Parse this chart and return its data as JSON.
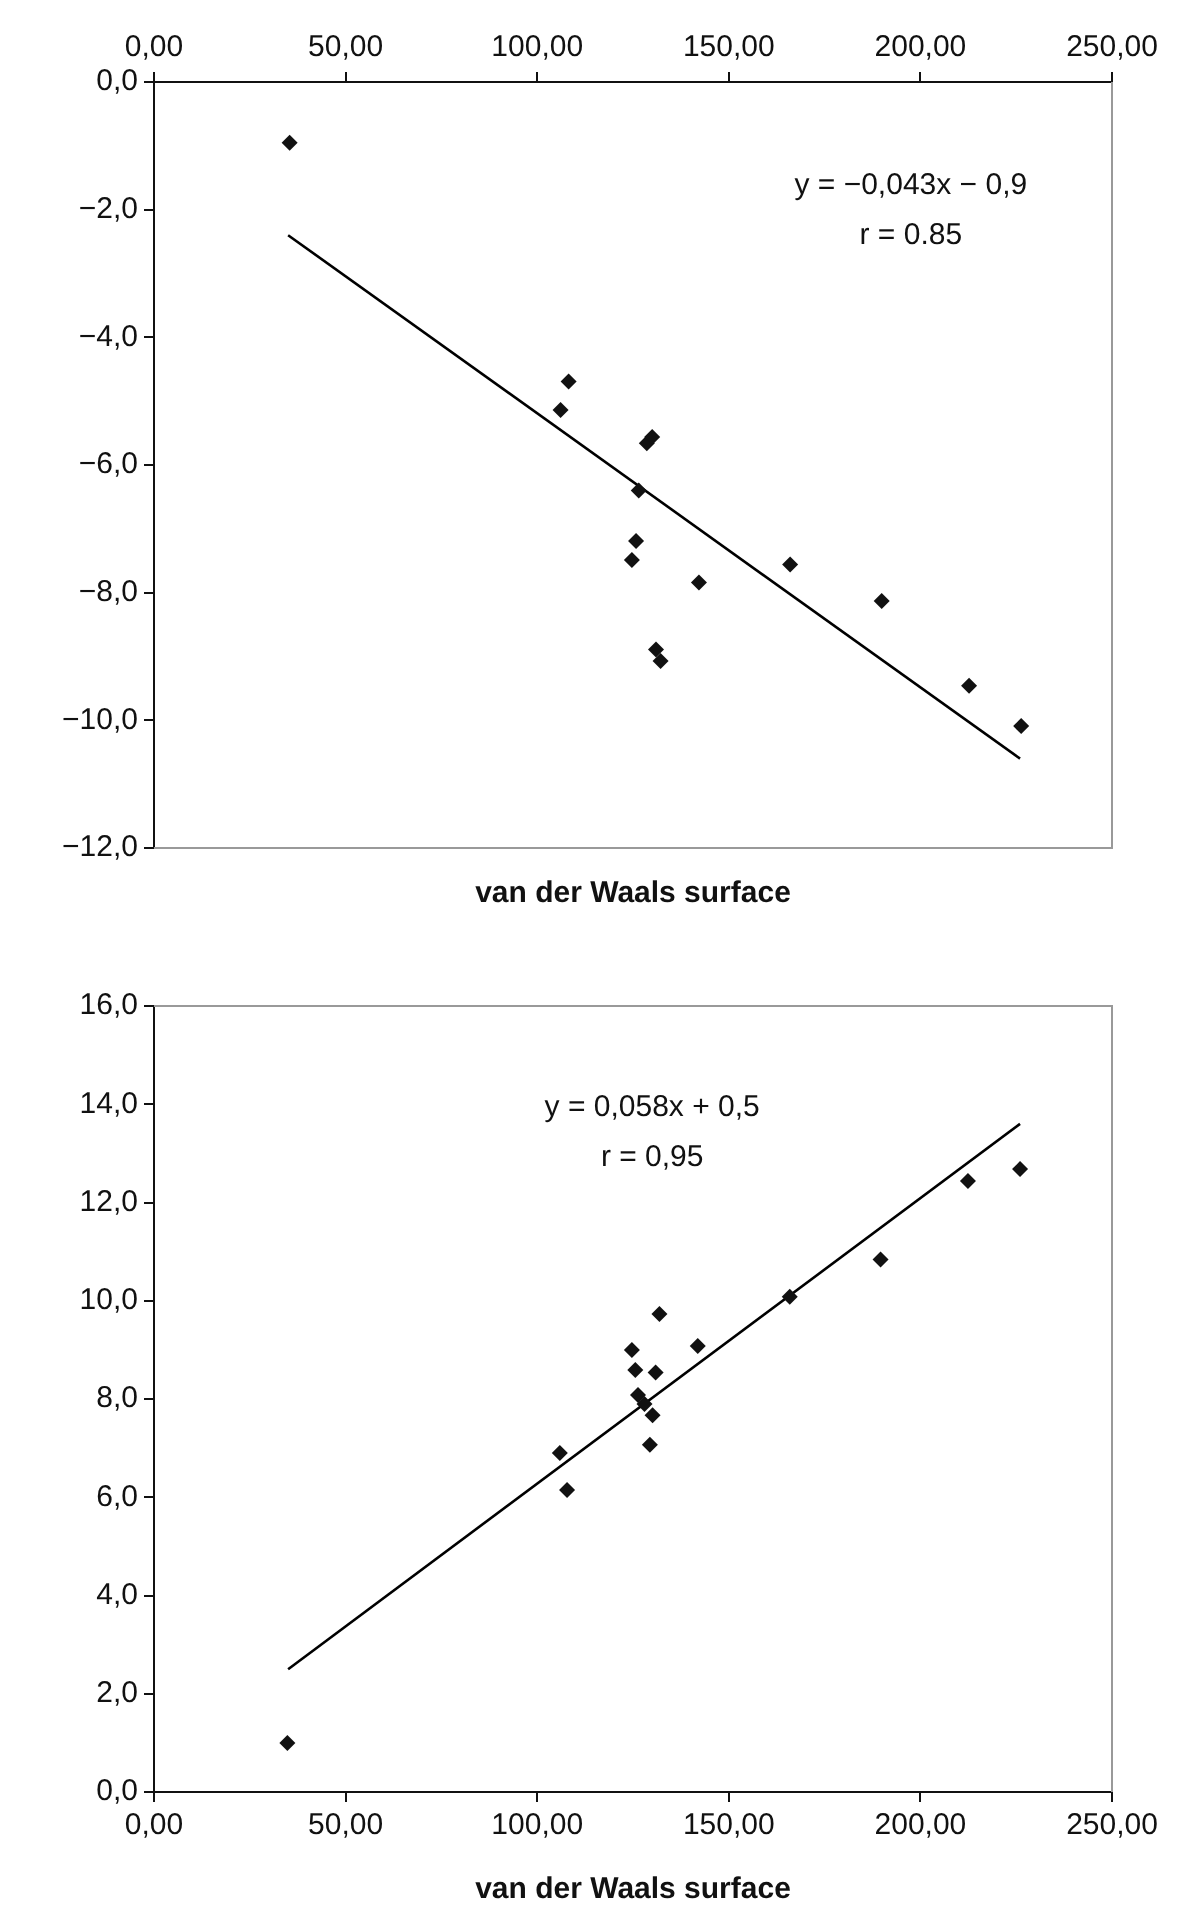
{
  "chart_data": [
    {
      "type": "scatter",
      "xlabel": "van der Waals surface",
      "xlim": [
        0,
        250
      ],
      "xticks": [
        {
          "value": 0,
          "label": "0,00"
        },
        {
          "value": 50,
          "label": "50,00"
        },
        {
          "value": 100,
          "label": "100,00"
        },
        {
          "value": 150,
          "label": "150,00"
        },
        {
          "value": 200,
          "label": "200,00"
        },
        {
          "value": 250,
          "label": "250,00"
        }
      ],
      "ylim": [
        -12,
        0
      ],
      "yticks": [
        {
          "value": -12,
          "label": "−12,0"
        },
        {
          "value": -10,
          "label": "−10,0"
        },
        {
          "value": -8,
          "label": "−8,0"
        },
        {
          "value": -6,
          "label": "−6,0"
        },
        {
          "value": -4,
          "label": "−4,0"
        },
        {
          "value": -2,
          "label": "−2,0"
        },
        {
          "value": 0,
          "label": "0,0"
        }
      ],
      "grid": false,
      "legend": false,
      "annotations": [
        "y = −0,043x − 0,9",
        "r = 0.85"
      ],
      "series": [
        {
          "type": "scatter",
          "marker": "diamond",
          "color": "#111111",
          "x": [
            35.4,
            108.2,
            106.1,
            128.6,
            130.0,
            126.5,
            125.8,
            124.7,
            142.2,
            166.0,
            189.9,
            131.0,
            132.2,
            212.7,
            226.3
          ],
          "values": [
            -0.95,
            -4.69,
            -5.14,
            -5.66,
            -5.56,
            -6.4,
            -7.19,
            -7.49,
            -7.84,
            -7.56,
            -8.13,
            -8.89,
            -9.07,
            -9.46,
            -10.09
          ]
        },
        {
          "type": "line",
          "color": "#000000",
          "x": [
            35,
            226
          ],
          "values": [
            -2.4,
            -10.6
          ]
        }
      ]
    },
    {
      "type": "scatter",
      "xlabel": "van der Waals surface",
      "xlim": [
        0,
        250
      ],
      "xticks": [
        {
          "value": 0,
          "label": "0,00"
        },
        {
          "value": 50,
          "label": "50,00"
        },
        {
          "value": 100,
          "label": "100,00"
        },
        {
          "value": 150,
          "label": "150,00"
        },
        {
          "value": 200,
          "label": "200,00"
        },
        {
          "value": 250,
          "label": "250,00"
        }
      ],
      "ylim": [
        0,
        16
      ],
      "yticks": [
        {
          "value": 0,
          "label": "0,0"
        },
        {
          "value": 2,
          "label": "2,0"
        },
        {
          "value": 4,
          "label": "4,0"
        },
        {
          "value": 6,
          "label": "6,0"
        },
        {
          "value": 8,
          "label": "8,0"
        },
        {
          "value": 10,
          "label": "10,0"
        },
        {
          "value": 12,
          "label": "12,0"
        },
        {
          "value": 14,
          "label": "14,0"
        },
        {
          "value": 16,
          "label": "16,0"
        }
      ],
      "grid": false,
      "legend": false,
      "annotations": [
        "y = 0,058x + 0,5",
        "r = 0,95"
      ],
      "series": [
        {
          "type": "scatter",
          "marker": "diamond",
          "color": "#111111",
          "x": [
            34.8,
            105.9,
            107.8,
            124.7,
            125.6,
            126.3,
            128.0,
            130.1,
            129.4,
            130.9,
            131.9,
            141.9,
            165.9,
            189.6,
            212.4,
            226.0
          ],
          "values": [
            1.0,
            6.9,
            6.15,
            9.0,
            8.59,
            8.08,
            7.9,
            7.67,
            7.07,
            8.54,
            9.73,
            9.08,
            10.08,
            10.84,
            12.44,
            12.68
          ]
        },
        {
          "type": "line",
          "color": "#000000",
          "x": [
            35,
            226
          ],
          "values": [
            2.5,
            13.6
          ]
        }
      ]
    }
  ]
}
